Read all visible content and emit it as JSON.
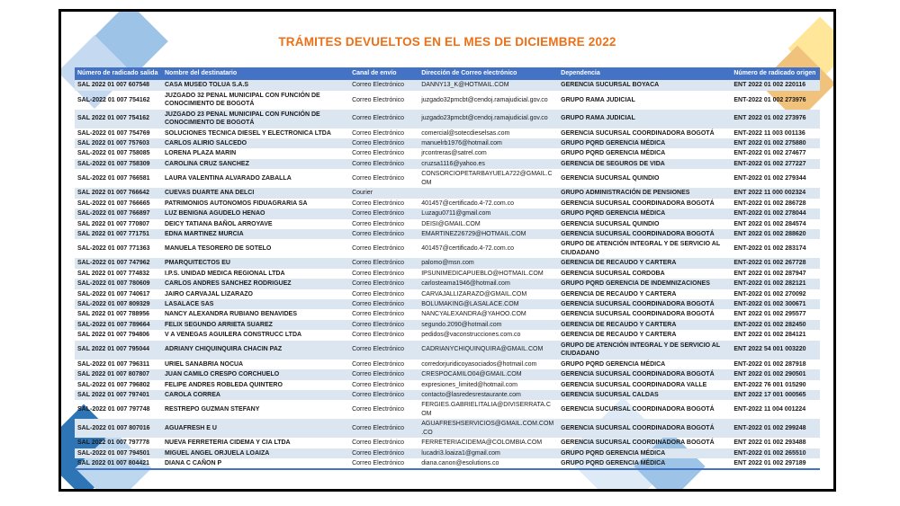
{
  "title": "TRÁMITES DEVUELTOS EN EL MES DE DICIEMBRE 2022",
  "colors": {
    "title_text": "#EE7016",
    "header_bg": "#4472C4",
    "header_text": "#FFFFFF",
    "row_alt_bg": "#DCE6F1",
    "frame_border": "#000000",
    "shape_blue_mid": "#9DC3E6",
    "shape_blue_light": "#C5D9F1",
    "shape_blue_dark": "#2E75B6",
    "shape_blue_pale": "#DEEBF7",
    "shape_yellow": "#FFE699",
    "shape_tan": "#F0C27C"
  },
  "table": {
    "columns": [
      "Número de radicado salida",
      "Nombre del destinatario",
      "Canal de envío",
      "Dirección de Correo electrónico",
      "Dependencia",
      "Número de radicado origen"
    ],
    "rows": [
      [
        "SAL 2022 01 007 607548",
        "CASA MUSEO TOLUA S.A.S",
        "Correo Electrónico",
        "DANNY13_K@HOTMAIL.COM",
        "GERENCIA SUCURSAL BOYACA",
        "ENT 2022 01 002 220116"
      ],
      [
        "SAL-2022 01 007 754162",
        "JUZGADO 32 PENAL MUNICIPAL CON FUNCIÓN DE CONOCIMIENTO DE BOGOTÁ",
        "Correo Electrónico",
        "juzgado32pmcbt@cendoj.ramajudicial.gov.co",
        "GRUPO RAMA JUDICIAL",
        "ENT-2022 01 002 273976"
      ],
      [
        "SAL 2022 01 007 754162",
        "JUZGADO 23 PENAL MUNICIPAL CON FUNCIÓN DE CONOCIMIENTO DE BOGOTÁ",
        "Correo Electrónico",
        "juzgado23pmcbt@cendoj.ramajudicial.gov.co",
        "GRUPO RAMA JUDICIAL",
        "ENT 2022 01 002 273976"
      ],
      [
        "SAL-2022 01 007 754769",
        "SOLUCIONES TECNICA DIESEL Y ELECTRONICA LTDA",
        "Correo Electrónico",
        "comercial@sotecdieselsas.com",
        "GERENCIA SUCURSAL COORDINADORA BOGOTÁ",
        "ENT-2022 11 003 001136"
      ],
      [
        "SAL 2022 01 007 757603",
        "CARLOS ALIRIO SALCEDO",
        "Correo Electrónico",
        "manuelrb1976@hotmail.com",
        "GRUPO PQRD GERENCIA MÉDICA",
        "ENT 2022 01 002 275880"
      ],
      [
        "SAL-2022 01 007 758085",
        "LORENA PLAZA MARIN",
        "Correo Electrónico",
        "jrcontreras@satrel.com",
        "GRUPO PQRD GERENCIA MÉDICA",
        "ENT-2022 01 002 274677"
      ],
      [
        "SAL-2022 01 007 758309",
        "CAROLINA CRUZ SANCHEZ",
        "Correo Electrónico",
        "cruzsa1116@yahoo.es",
        "GERENCIA DE SEGUROS DE VIDA",
        "ENT-2022 01 002 277227"
      ],
      [
        "SAL-2022 01 007 766581",
        "LAURA VALENTINA ALVARADO ZABALLA",
        "Correo Electrónico",
        "CONSORCIOPETARBAYUELA722@GMAIL.COM",
        "GERENCIA SUCURSAL QUINDIO",
        "ENT-2022 01 002 279344"
      ],
      [
        "SAL 2022 01 007 766642",
        "CUEVAS DUARTE ANA DELCI",
        "Courier",
        "",
        "GRUPO ADMINISTRACIÓN DE PENSIONES",
        "ENT 2022 11 000 002324"
      ],
      [
        "SAL-2022 01 007 766665",
        "PATRIMONIOS AUTONOMOS FIDUAGRARIA SA",
        "Correo Electrónico",
        "401457@certificado.4-72.com.co",
        "GERENCIA SUCURSAL COORDINADORA BOGOTÁ",
        "ENT-2022 01 002 286728"
      ],
      [
        "SAL-2022 01 007 766897",
        "LUZ BENIGNA AGUDELO HENAO",
        "Correo Electrónico",
        "Luzagu0711@gmail.com",
        "GRUPO PQRD GERENCIA MÉDICA",
        "ENT-2022 01 002 278044"
      ],
      [
        "SAL 2022 01 007 770807",
        "DEICY TATIANA BAÑOL ARROYAVE",
        "Correo Electrónico",
        "DEISI@GMAIL.COM",
        "GERENCIA SUCURSAL QUINDIO",
        "ENT 2022 01 002 284574"
      ],
      [
        "SAL 2022 01 007 771751",
        "EDNA MARTINEZ MURCIA",
        "Correo Electrónico",
        "EMARTINEZ26729@HOTMAIL.COM",
        "GERENCIA SUCURSAL COORDINADORA BOGOTÁ",
        "ENT 2022 01 002 288620"
      ],
      [
        "SAL-2022 01 007 771363",
        "MANUELA TESORERO DE SOTELO",
        "Correo Electrónico",
        "401457@certificado.4-72.com.co",
        "GRUPO DE ATENCIÓN INTEGRAL Y DE SERVICIO AL CIUDADANO",
        "ENT-2022 01 002 283174"
      ],
      [
        "SAL-2022 01 007 747962",
        "PMARQUITECTOS EU",
        "Correo Electrónico",
        "palomo@msn.com",
        "GERENCIA DE RECAUDO Y CARTERA",
        "ENT-2022 01 002 267728"
      ],
      [
        "SAL 2022 01 007 774832",
        "I.P.S. UNIDAD MEDICA REGIONAL LTDA",
        "Correo Electrónico",
        "IPSUNIMEDICAPUEBLO@HOTMAIL.COM",
        "GERENCIA SUCURSAL CORDOBA",
        "ENT 2022 01 002 287947"
      ],
      [
        "SAL-2022 01 007 780609",
        "CARLOS ANDRES SANCHEZ RODRIGUEZ",
        "Correo Electrónico",
        "carlosteama1946@hotmail.com",
        "GRUPO PQRD GERENCIA DE INDEMNIZACIONES",
        "ENT-2022 01 002 282121"
      ],
      [
        "SAL-2022 01 007 740617",
        "JAIRO CARVAJAL LIZARAZO",
        "Correo Electrónico",
        "CARVAJALLIZARAZO@GMAIL.COM",
        "GERENCIA DE RECAUDO Y CARTERA",
        "ENT-2022 01 002 270092"
      ],
      [
        "SAL-2022 01 007 809329",
        "LASALACE SAS",
        "Correo Electrónico",
        "BOLUMAKING@LASALACE.COM",
        "GERENCIA SUCURSAL COORDINADORA BOGOTÁ",
        "ENT-2022 01 002 300671"
      ],
      [
        "SAL 2022 01 007 788956",
        "NANCY ALEXANDRA RUBIANO BENAVIDES",
        "Correo Electrónico",
        "NANCYALEXANDRA@YAHOO.COM",
        "GERENCIA SUCURSAL COORDINADORA BOGOTÁ",
        "ENT 2022 01 002 295577"
      ],
      [
        "SAL-2022 01 007 789664",
        "FELIX SEGUNDO ARRIETA SUAREZ",
        "Correo Electrónico",
        "segundo.2090@hotmail.com",
        "GERENCIA DE RECAUDO Y CARTERA",
        "ENT-2022 01 002 282450"
      ],
      [
        "SAL 2022 01 007 794806",
        "V A VENEGAS AGUILERA CONSTRUCC LTDA",
        "Correo Electrónico",
        "pedidos@vaconstrucciones.com.co",
        "GERENCIA DE RECAUDO Y CARTERA",
        "ENT 2022 01 002 284121"
      ],
      [
        "SAL 2022 01 007 795044",
        "ADRIANY CHIQUINQUIRA CHACIN PAZ",
        "Correo Electrónico",
        "CADRIANYCHIQUINQUIRA@GMAIL.COM",
        "GRUPO DE ATENCIÓN INTEGRAL Y DE SERVICIO AL CIUDADANO",
        "ENT 2022 54 001 003220"
      ],
      [
        "SAL-2022 01 007 796311",
        "URIEL SANABRIA NOCUA",
        "Correo Electrónico",
        "corredorjuridicoyasociados@hotmail.com",
        "GRUPO PQRD GERENCIA MÉDICA",
        "ENT-2022 01 002 287918"
      ],
      [
        "SAL 2022 01 007 807807",
        "JUAN CAMILO CRESPO CORCHUELO",
        "Correo Electrónico",
        "CRESPOCAMILO04@GMAIL.COM",
        "GERENCIA SUCURSAL COORDINADORA BOGOTÁ",
        "ENT 2022 01 002 290501"
      ],
      [
        "SAL-2022 01 007 796802",
        "FELIPE ANDRES ROBLEDA QUINTERO",
        "Correo Electrónico",
        "expresiones_limited@hotmail.com",
        "GERENCIA SUCURSAL COORDINADORA VALLE",
        "ENT-2022 76 001 015290"
      ],
      [
        "SAL 2022 01 007 797401",
        "CAROLA CORREA",
        "Correo Electrónico",
        "contacto@lasredesrestaurante.com",
        "GERENCIA SUCURSAL CALDAS",
        "ENT 2022 17 001 000565"
      ],
      [
        "SAL-2022 01 007 797748",
        "RESTREPO GUZMAN STEFANY",
        "Correo Electrónico",
        "FERGIES.GABRIELITALIA@DIVISERRATA.COM",
        "GERENCIA SUCURSAL COORDINADORA BOGOTÁ",
        "ENT-2022 11 004 001224"
      ],
      [
        "SAL-2022 01 007 807016",
        "AGUAFRESH E U",
        "Correo Electrónico",
        "AGUAFRESHSERVICIOS@GMAIL.COM.COM.CO",
        "GERENCIA SUCURSAL COORDINADORA BOGOTÁ",
        "ENT-2022 01 002 299248"
      ],
      [
        "SAL 2022 01 007 797778",
        "NUEVA FERRETERIA CIDEMA Y CIA LTDA",
        "Correo Electrónico",
        "FERRETERIACIDEMA@COLOMBIA.COM",
        "GERENCIA SUCURSAL COORDINADORA BOGOTÁ",
        "ENT 2022 01 002 293488"
      ],
      [
        "SAL-2022 01 007 794501",
        "MIGUEL ANGEL ORJUELA LOAIZA",
        "Correo Electrónico",
        "lucadri3.loaiza1@gmail.com",
        "GRUPO PQRD GERENCIA MÉDICA",
        "ENT-2022 01 002 265510"
      ],
      [
        "SAL 2022 01 007 804421",
        "DIANA C CAÑON P",
        "Correo Electrónico",
        "diana.canon@esolutions.co",
        "GRUPO PQRD GERENCIA MÉDICA",
        "ENT 2022 01 002 297189"
      ]
    ]
  }
}
